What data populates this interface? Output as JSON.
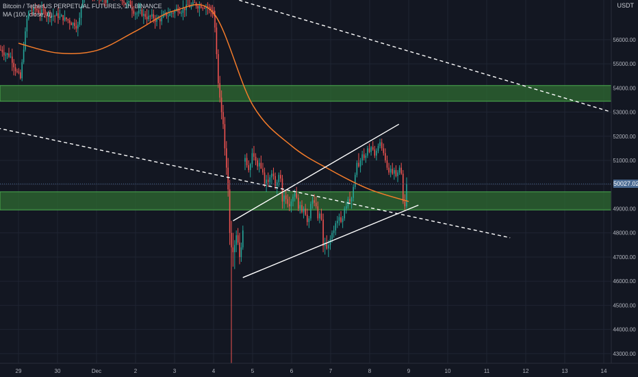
{
  "legend": {
    "symbol": "Bitcoin / TetherUS PERPETUAL FUTURES, 1h, BINANCE",
    "indicator": "MA (100, close, 0)"
  },
  "currency": "USDT",
  "colors": {
    "background": "#131722",
    "grid": "#1f2433",
    "up": "#26a69a",
    "down": "#ef5350",
    "ma": "#f57c2a",
    "zone_fill": "#2f6b32",
    "zone_border": "#4caf50",
    "trendline": "#ffffff",
    "axis_text": "#b2b5be"
  },
  "chart_data": {
    "type": "candlestick",
    "symbol": "BTCUSDT",
    "timeframe": "1h",
    "ylim": [
      42600,
      57500
    ],
    "y_ticks": [
      43000,
      44000,
      45000,
      46000,
      47000,
      48000,
      49000,
      50000,
      51000,
      52000,
      53000,
      54000,
      55000,
      56000
    ],
    "y_tick_labels": [
      "43000.00",
      "44000.00",
      "45000.00",
      "46000.00",
      "47000.00",
      "48000.00",
      "49000.00",
      "50000.00",
      "51000.00",
      "52000.00",
      "53000.00",
      "54000.00",
      "55000.00",
      "56000.00"
    ],
    "x_ticks": [
      "29",
      "30",
      "Dec",
      "2",
      "3",
      "4",
      "5",
      "6",
      "7",
      "8",
      "9",
      "10",
      "11",
      "12",
      "13",
      "14"
    ],
    "last_price": 50027.02,
    "last_price_label": "50027.02",
    "zones": [
      {
        "low": 53450,
        "high": 54100
      },
      {
        "low": 48950,
        "high": 49700
      }
    ],
    "ma_line": [
      [
        "29",
        55850
      ],
      [
        "30",
        55450
      ],
      [
        "Dec",
        55550
      ],
      [
        "2",
        56350
      ],
      [
        "3",
        57200
      ],
      [
        "4",
        57100
      ],
      [
        "5",
        53300
      ],
      [
        "6",
        51600
      ],
      [
        "7",
        50600
      ],
      [
        "8",
        49800
      ],
      [
        "9",
        49300
      ]
    ],
    "trendlines": [
      {
        "style": "solid",
        "from": [
          "4.5",
          48500
        ],
        "to": [
          "8.75",
          52500
        ]
      },
      {
        "style": "solid",
        "from": [
          "4.75",
          46150
        ],
        "to": [
          "9.25",
          49150
        ]
      },
      {
        "style": "dashed",
        "from": [
          "28.0",
          52500
        ],
        "to": [
          "11.6",
          47800
        ]
      },
      {
        "style": "dashed",
        "from": [
          "3.9",
          58000
        ],
        "to": [
          "14.2",
          53000
        ]
      }
    ],
    "candles_ohlc": [
      [
        50950,
        51250,
        50600,
        51100
      ],
      [
        51100,
        51300,
        50700,
        50800
      ],
      [
        50800,
        51000,
        50500,
        50600
      ],
      [
        50600,
        50900,
        50300,
        50850
      ],
      [
        50850,
        51500,
        50700,
        51300
      ],
      [
        51300,
        51600,
        51000,
        51150
      ],
      [
        51150,
        51300,
        50800,
        51000
      ],
      [
        51000,
        51100,
        50600,
        50750
      ],
      [
        50750,
        51100,
        50500,
        50900
      ],
      [
        50900,
        51200,
        50700,
        50650
      ],
      [
        50650,
        50900,
        50400,
        50500
      ],
      [
        50500,
        50700,
        49900,
        50050
      ],
      [
        50050,
        50400,
        49700,
        50200
      ],
      [
        50200,
        50500,
        49900,
        50100
      ],
      [
        50100,
        50400,
        49900,
        50300
      ],
      [
        50300,
        50600,
        50000,
        50450
      ],
      [
        50450,
        50700,
        50200,
        50350
      ],
      [
        50350,
        50500,
        49800,
        49950
      ],
      [
        49950,
        50200,
        49600,
        50100
      ],
      [
        50100,
        50500,
        49900,
        50400
      ],
      [
        50400,
        50600,
        50100,
        50250
      ],
      [
        50250,
        50400,
        49000,
        49300
      ],
      [
        49300,
        49700,
        49000,
        49550
      ],
      [
        49550,
        49800,
        49200,
        49400
      ],
      [
        49400,
        49600,
        49050,
        49200
      ],
      [
        49200,
        49500,
        48900,
        49100
      ],
      [
        49100,
        49400,
        48850,
        49300
      ],
      [
        49300,
        49600,
        49100,
        49500
      ],
      [
        49500,
        49800,
        49300,
        49650
      ],
      [
        49650,
        49900,
        49400,
        49450
      ],
      [
        49450,
        49600,
        48900,
        49000
      ],
      [
        49000,
        49300,
        48800,
        49150
      ],
      [
        49150,
        49350,
        48800,
        48850
      ],
      [
        48850,
        49100,
        48600,
        49000
      ],
      [
        49000,
        49200,
        48700,
        48750
      ],
      [
        48750,
        49000,
        48300,
        48450
      ],
      [
        48450,
        48700,
        48200,
        48600
      ],
      [
        48600,
        49300,
        48500,
        49200
      ],
      [
        49200,
        49500,
        49000,
        49350
      ],
      [
        49350,
        49600,
        49100,
        49250
      ],
      [
        49250,
        49500,
        49000,
        49100
      ],
      [
        49100,
        49300,
        48500,
        48600
      ],
      [
        48600,
        48900,
        48400,
        48800
      ],
      [
        48800,
        49000,
        48500,
        48550
      ],
      [
        48550,
        48800,
        47200,
        47450
      ],
      [
        47450,
        47800,
        47100,
        47600
      ],
      [
        47600,
        47900,
        47300,
        47350
      ],
      [
        47350,
        47700,
        47000,
        47500
      ],
      [
        47500,
        47900,
        47300,
        47750
      ],
      [
        47750,
        48100,
        47600,
        48000
      ],
      [
        48000,
        48300,
        47800,
        48100
      ],
      [
        48100,
        48500,
        47900,
        48400
      ],
      [
        48400,
        48700,
        48200,
        48500
      ],
      [
        48500,
        48800,
        48300,
        48650
      ],
      [
        48650,
        48900,
        48400,
        48450
      ],
      [
        48450,
        48700,
        48200,
        48600
      ],
      [
        48600,
        49100,
        48500,
        49000
      ],
      [
        49000,
        49300,
        48800,
        49100
      ],
      [
        49100,
        49500,
        49000,
        49400
      ],
      [
        49400,
        49700,
        49200,
        49300
      ],
      [
        49300,
        49500,
        49000,
        49450
      ],
      [
        49450,
        50000,
        49300,
        49900
      ],
      [
        49900,
        50500,
        49800,
        50400
      ],
      [
        50400,
        51000,
        50300,
        50900
      ],
      [
        50900,
        51300,
        50700,
        50750
      ],
      [
        50750,
        51100,
        50500,
        51000
      ],
      [
        51000,
        51400,
        50800,
        51250
      ],
      [
        51250,
        51500,
        51000,
        51100
      ],
      [
        51100,
        51300,
        50900,
        51200
      ],
      [
        51200,
        51600,
        51100,
        51500
      ],
      [
        51500,
        51700,
        51300,
        51350
      ],
      [
        51350,
        51600,
        51200,
        51550
      ],
      [
        51550,
        51800,
        51400,
        51450
      ],
      [
        51450,
        51600,
        51100,
        51200
      ],
      [
        51200,
        51500,
        51000,
        51400
      ],
      [
        51400,
        51700,
        51300,
        51600
      ],
      [
        51600,
        51900,
        51500,
        51750
      ],
      [
        51750,
        51900,
        51400,
        51500
      ],
      [
        51500,
        51700,
        51200,
        51300
      ],
      [
        51300,
        51500,
        50900,
        51000
      ],
      [
        51000,
        51200,
        50600,
        50700
      ],
      [
        50700,
        50900,
        50400,
        50500
      ],
      [
        50500,
        50800,
        50300,
        50650
      ],
      [
        50650,
        50900,
        50400,
        50450
      ],
      [
        50450,
        50700,
        50200,
        50600
      ],
      [
        50600,
        50800,
        50300,
        50350
      ],
      [
        50350,
        50600,
        50100,
        50500
      ],
      [
        50500,
        50800,
        50400,
        50700
      ],
      [
        50700,
        50900,
        50400,
        50450
      ],
      [
        50450,
        50600,
        49200,
        49300
      ],
      [
        49300,
        49600,
        48950,
        49100
      ],
      [
        49100,
        50300,
        49000,
        50027
      ]
    ]
  }
}
